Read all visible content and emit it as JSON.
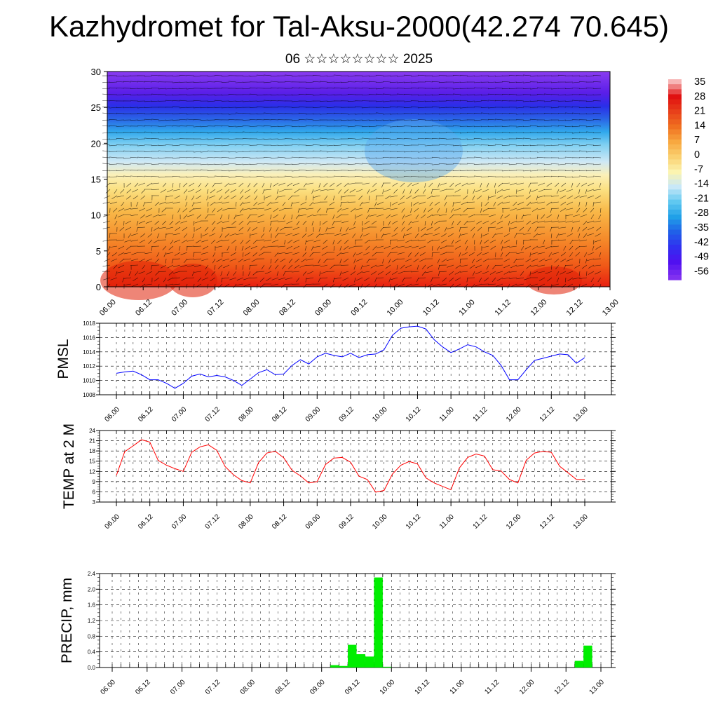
{
  "header": {
    "title": "Kazhydromet for Tal-Aksu-2000(42.274 70.645)",
    "subtitle": "06 ☆☆☆☆☆☆☆☆ 2025"
  },
  "chart_data": [
    {
      "type": "heatmap",
      "description_ylim": [
        0,
        30
      ],
      "ylim": [
        0,
        30
      ],
      "yticks": [
        0,
        5,
        10,
        15,
        20,
        25,
        30
      ],
      "x_tick_labels": [
        "06.00",
        "06.12",
        "07.00",
        "07.12",
        "08.00",
        "08.12",
        "09.00",
        "09.12",
        "10.00",
        "10.12",
        "11.00",
        "11.12",
        "12.00",
        "12.12",
        "13.00"
      ],
      "colorbar": {
        "labels": [
          "35",
          "28",
          "21",
          "14",
          "7",
          "0",
          "-7",
          "-14",
          "-21",
          "-28",
          "-35",
          "-42",
          "-49",
          "-56"
        ],
        "colors": [
          "#f7b6b6",
          "#e01010",
          "#e8401a",
          "#f07020",
          "#f8a840",
          "#fad070",
          "#fcf4b0",
          "#c8e8f8",
          "#60c8f0",
          "#20a0e8",
          "#2060e8",
          "#3030f0",
          "#5010f0",
          "#8030f0"
        ]
      },
      "overlay": "wind barbs"
    },
    {
      "type": "line",
      "ylabel": "PMSL",
      "ylim": [
        1008,
        1018
      ],
      "yticks": [
        "1008",
        "1010",
        "1012",
        "1014",
        "1016",
        "1018"
      ],
      "x_tick_labels": [
        "06.00",
        "06.12",
        "07.00",
        "07.12",
        "08.00",
        "08.12",
        "09.00",
        "09.12",
        "10.00",
        "10.12",
        "11.00",
        "11.12",
        "12.00",
        "12.12",
        "13.00"
      ],
      "series": [
        {
          "color": "#0000ff",
          "values": [
            1011.0,
            1011.2,
            1011.3,
            1010.8,
            1010.1,
            1010.1,
            1009.6,
            1008.9,
            1009.6,
            1010.6,
            1010.9,
            1010.5,
            1010.7,
            1010.5,
            1010.0,
            1009.3,
            1010.2,
            1011.1,
            1011.5,
            1010.8,
            1010.9,
            1012.1,
            1012.9,
            1012.3,
            1013.3,
            1013.8,
            1013.5,
            1013.3,
            1013.8,
            1013.2,
            1013.6,
            1013.7,
            1014.3,
            1016.3,
            1017.3,
            1017.5,
            1017.6,
            1017.2,
            1015.7,
            1014.7,
            1013.9,
            1014.4,
            1015.0,
            1014.7,
            1014.0,
            1013.5,
            1012.1,
            1010.1,
            1010.1,
            1011.5,
            1012.8,
            1013.1,
            1013.4,
            1013.7,
            1013.6,
            1012.4,
            1013.2
          ]
        }
      ]
    },
    {
      "type": "line",
      "ylabel": "TEMP at 2 M",
      "ylim": [
        3,
        24
      ],
      "yticks": [
        "3",
        "6",
        "9",
        "12",
        "15",
        "18",
        "21",
        "24"
      ],
      "x_tick_labels": [
        "06.00",
        "06.12",
        "07.00",
        "07.12",
        "08.00",
        "08.12",
        "09.00",
        "09.12",
        "10.00",
        "10.12",
        "11.00",
        "11.12",
        "12.00",
        "12.12",
        "13.00"
      ],
      "series": [
        {
          "color": "#ff0000",
          "values": [
            10.8,
            17.8,
            19.5,
            21.3,
            20.6,
            15.2,
            13.8,
            12.8,
            12.0,
            17.6,
            19.2,
            19.8,
            18.2,
            13.4,
            11.0,
            9.3,
            8.6,
            14.6,
            17.4,
            17.9,
            16.0,
            12.3,
            10.7,
            8.6,
            9.0,
            14.0,
            15.9,
            16.1,
            14.7,
            10.6,
            9.6,
            5.9,
            6.4,
            11.2,
            13.8,
            14.9,
            14.2,
            10.1,
            8.6,
            7.6,
            6.6,
            13.0,
            16.1,
            17.1,
            16.5,
            12.5,
            12.1,
            9.6,
            8.6,
            15.3,
            17.4,
            17.9,
            17.6,
            13.5,
            11.6,
            9.6,
            9.6
          ]
        }
      ]
    },
    {
      "type": "bar",
      "ylabel": "PRECIP, mm",
      "ylim": [
        0,
        2.4
      ],
      "yticks": [
        "0.0",
        "0.4",
        "0.8",
        "1.2",
        "1.6",
        "2.0",
        "2.4"
      ],
      "x_tick_labels": [
        "06.00",
        "06.12",
        "07.00",
        "07.12",
        "08.00",
        "08.12",
        "09.00",
        "09.12",
        "10.00",
        "10.12",
        "11.00",
        "11.12",
        "12.00",
        "12.12",
        "13.00"
      ],
      "series": [
        {
          "color": "#00ee00",
          "values": [
            0,
            0,
            0,
            0,
            0,
            0,
            0,
            0,
            0,
            0,
            0,
            0,
            0,
            0,
            0,
            0,
            0,
            0,
            0,
            0,
            0,
            0,
            0,
            0,
            0,
            0.06,
            0.04,
            0.58,
            0.34,
            0.28,
            2.3,
            0.02,
            0,
            0,
            0,
            0,
            0,
            0,
            0,
            0,
            0,
            0,
            0,
            0,
            0,
            0,
            0,
            0,
            0,
            0,
            0,
            0,
            0,
            0.17,
            0.56,
            0,
            0
          ]
        }
      ]
    }
  ]
}
